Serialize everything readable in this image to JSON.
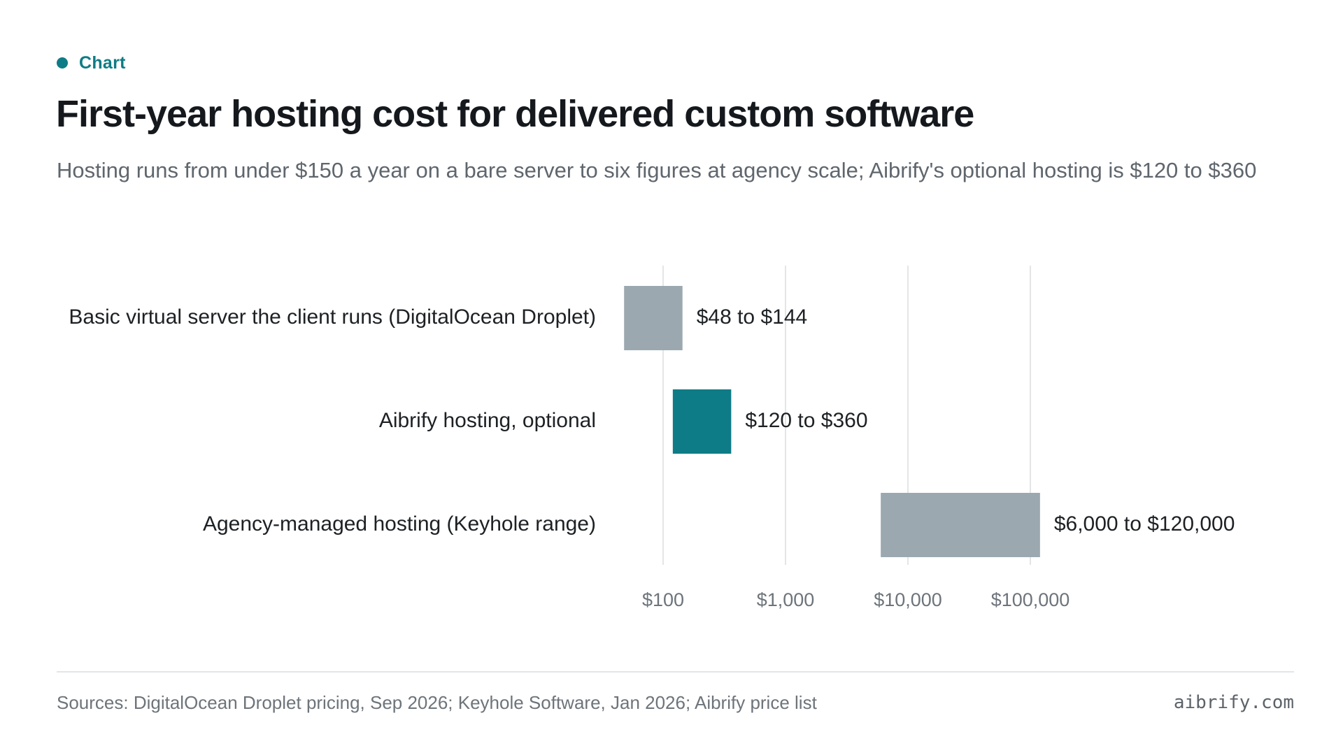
{
  "header": {
    "eyebrow": "Chart",
    "title": "First-year hosting cost for delivered custom software",
    "subtitle": "Hosting runs from under $150 a year on a bare server to six figures at agency scale; Aibrify's optional hosting is $120 to $360"
  },
  "colors": {
    "accent": "#0e7c86",
    "neutral_bar": "#9ba8b0"
  },
  "chart_data": {
    "type": "bar",
    "orientation": "horizontal",
    "style": "floating-range",
    "x_scale": "log",
    "x_ticks": [
      100,
      1000,
      10000,
      100000
    ],
    "x_tick_labels": [
      "$100",
      "$1,000",
      "$10,000",
      "$100,000"
    ],
    "grid": true,
    "categories": [
      "Basic virtual server the client runs (DigitalOcean Droplet)",
      "Aibrify hosting, optional",
      "Agency-managed hosting (Keyhole range)"
    ],
    "ranges": [
      {
        "low": 48,
        "high": 144,
        "label": "$48 to $144",
        "color": "#9ba8b0"
      },
      {
        "low": 120,
        "high": 360,
        "label": "$120 to $360",
        "color": "#0e7c86"
      },
      {
        "low": 6000,
        "high": 120000,
        "label": "$6,000 to $120,000",
        "color": "#9ba8b0"
      }
    ]
  },
  "footer": {
    "sources": "Sources: DigitalOcean Droplet pricing, Sep 2026; Keyhole Software, Jan 2026; Aibrify price list",
    "brand": "aibrify.com"
  }
}
